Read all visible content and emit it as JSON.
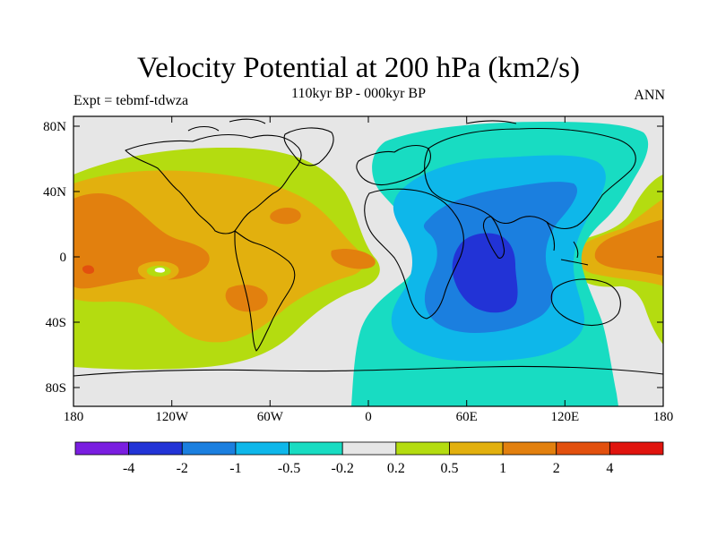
{
  "title": "Velocity Potential at 200 hPa (km2/s)",
  "subtitle": "110kyr BP - 000kyr BP",
  "left_label": "Expt = tebmf-tdwza",
  "right_label": "ANN",
  "lat_ticks": [
    "80N",
    "40N",
    "0",
    "40S",
    "80S"
  ],
  "lon_ticks": [
    "180",
    "120W",
    "60W",
    "0",
    "60E",
    "120E",
    "180"
  ],
  "colorbar": {
    "colors": [
      "#7a1ee0",
      "#2233d6",
      "#1b7fdf",
      "#0eb7ea",
      "#18dcc2",
      "#e6e6e6",
      "#b4dc10",
      "#e2b00e",
      "#e2800e",
      "#e2500e",
      "#e0140e"
    ],
    "labels": [
      "-4",
      "-2",
      "-1",
      "-0.5",
      "-0.2",
      "0.2",
      "0.5",
      "1",
      "2",
      "4"
    ]
  },
  "map_colors": {
    "background": "#e6e6e6",
    "neg_02": "#18dcc2",
    "neg_05": "#0eb7ea",
    "neg_1": "#1b7fdf",
    "neg_2": "#2233d6",
    "pos_02": "#b4dc10",
    "pos_05": "#e2b00e",
    "pos_1": "#e2800e",
    "pos_2": "#e2500e",
    "white_spot": "#ffffff"
  }
}
